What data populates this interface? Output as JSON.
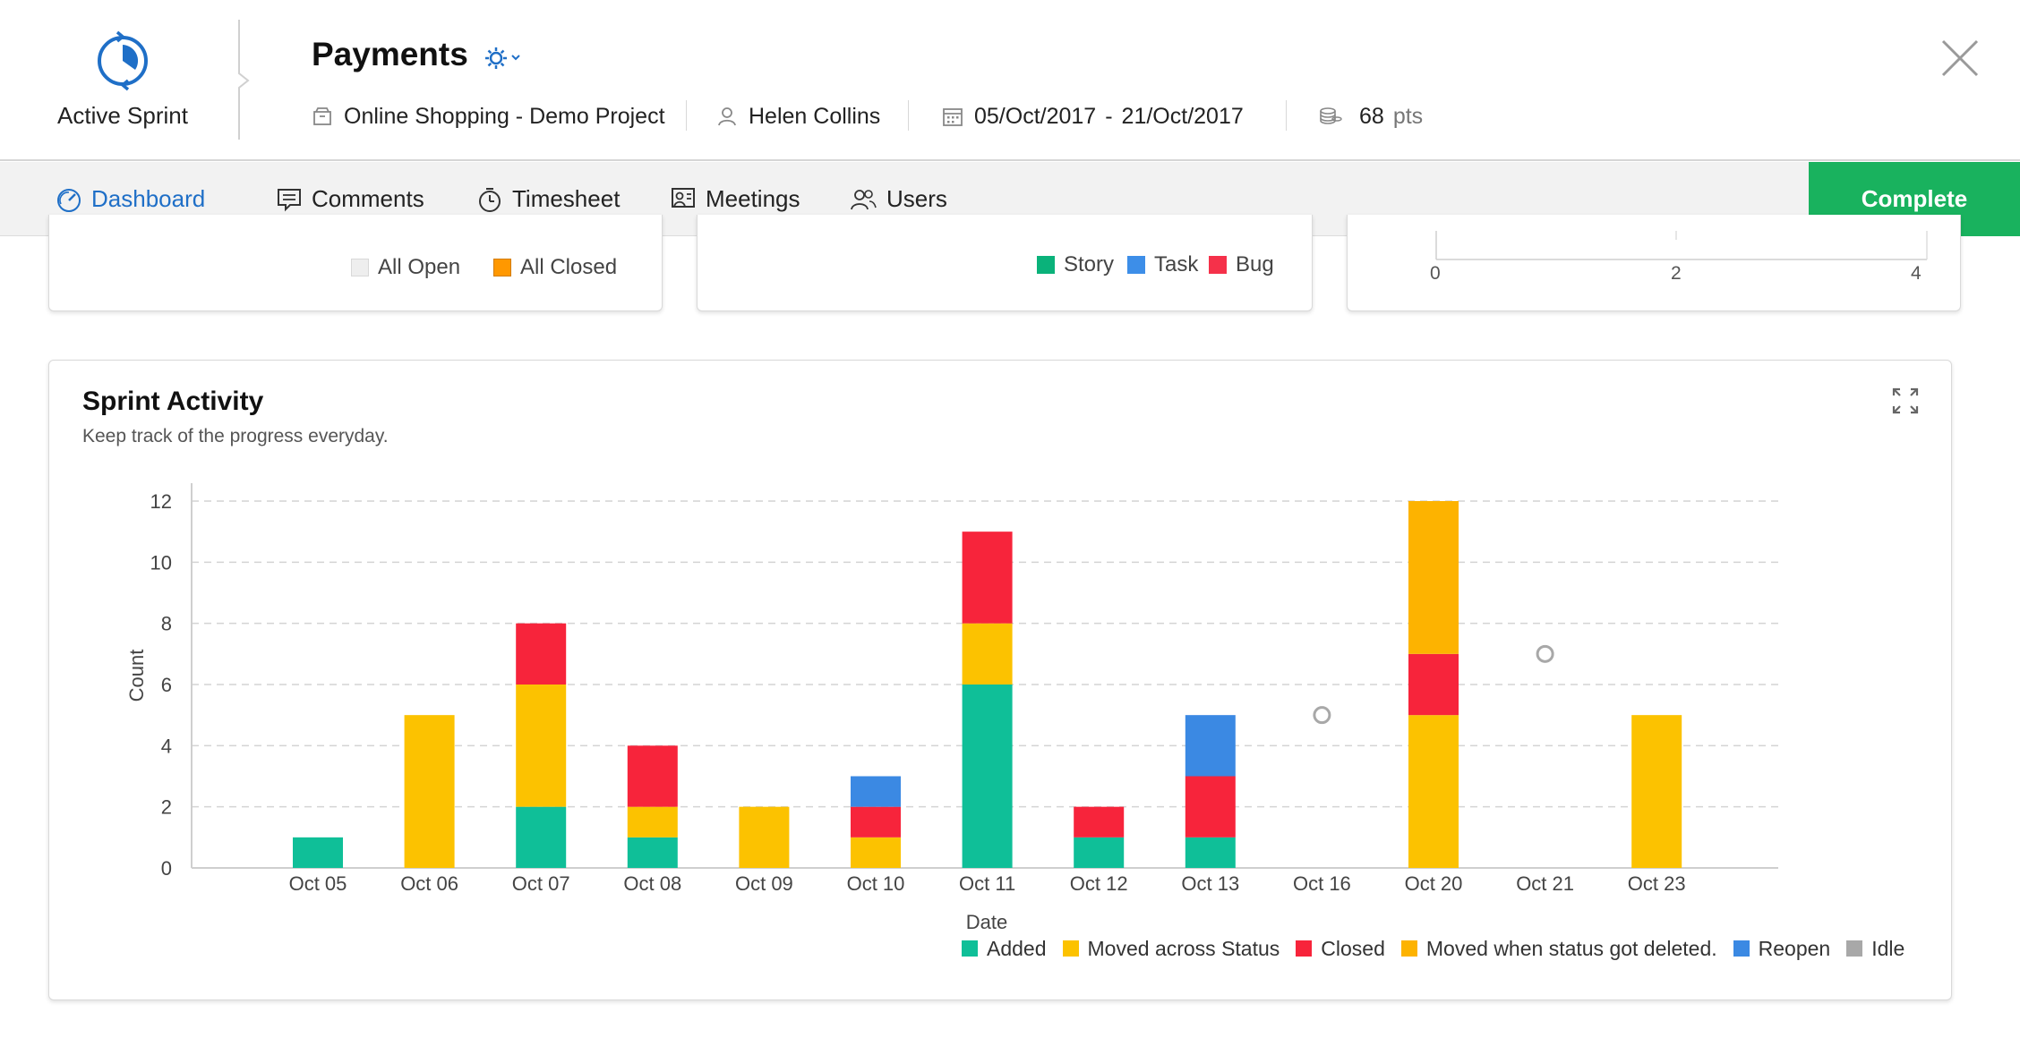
{
  "header": {
    "sprint_label": "Active Sprint",
    "title": "Payments",
    "project": "Online Shopping - Demo Project",
    "owner": "Helen Collins",
    "date_start": "05/Oct/2017",
    "date_sep": "-",
    "date_end": "21/Oct/2017",
    "points": "68",
    "points_unit": "pts",
    "accent_color": "#1f6fc7"
  },
  "tabs": [
    {
      "label": "Dashboard",
      "icon": "dashboard-gauge-icon",
      "active": true
    },
    {
      "label": "Comments",
      "icon": "comment-icon",
      "active": false
    },
    {
      "label": "Timesheet",
      "icon": "stopwatch-icon",
      "active": false
    },
    {
      "label": "Meetings",
      "icon": "meeting-icon",
      "active": false
    },
    {
      "label": "Users",
      "icon": "users-icon",
      "active": false
    }
  ],
  "complete_button": {
    "label": "Complete",
    "color": "#19b25e"
  },
  "upper_cards": {
    "card_a_legend": [
      {
        "label": "All Open",
        "color": "#eeeeee"
      },
      {
        "label": "All Closed",
        "color": "#ff9800"
      }
    ],
    "card_b_legend": [
      {
        "label": "Story",
        "color": "#0ab27a"
      },
      {
        "label": "Task",
        "color": "#3d8ee8"
      },
      {
        "label": "Bug",
        "color": "#f5314a"
      }
    ],
    "card_c_ticks": [
      "0",
      "2",
      "4"
    ]
  },
  "activity": {
    "title": "Sprint Activity",
    "subtitle": "Keep track of the progress everyday.",
    "expand_icon": "expand-icon"
  },
  "chart_data": {
    "type": "bar",
    "stacked": true,
    "xlabel": "Date",
    "ylabel": "Count",
    "ylim": [
      0,
      12
    ],
    "yticks": [
      0,
      2,
      4,
      6,
      8,
      10,
      12
    ],
    "grid": true,
    "legend_position": "bottom-right",
    "categories": [
      "Oct 05",
      "Oct 06",
      "Oct 07",
      "Oct 08",
      "Oct 09",
      "Oct 10",
      "Oct 11",
      "Oct 12",
      "Oct 13",
      "Oct 16",
      "Oct 20",
      "Oct 21",
      "Oct 23"
    ],
    "series": [
      {
        "name": "Added",
        "color": "#0fbf98",
        "values": [
          1,
          0,
          2,
          1,
          0,
          0,
          6,
          1,
          1,
          0,
          0,
          0,
          0
        ]
      },
      {
        "name": "Moved across Status",
        "color": "#fcc200",
        "values": [
          0,
          5,
          4,
          1,
          2,
          1,
          2,
          0,
          0,
          0,
          5,
          0,
          5
        ]
      },
      {
        "name": "Closed",
        "color": "#f7243b",
        "values": [
          0,
          0,
          2,
          2,
          0,
          1,
          3,
          1,
          2,
          0,
          2,
          0,
          0
        ]
      },
      {
        "name": "Moved when status got deleted.",
        "color": "#fdb300",
        "values": [
          0,
          0,
          0,
          0,
          0,
          0,
          0,
          0,
          0,
          0,
          5,
          0,
          0
        ]
      },
      {
        "name": "Reopen",
        "color": "#3b89e3",
        "values": [
          0,
          0,
          0,
          0,
          0,
          1,
          0,
          0,
          2,
          0,
          0,
          0,
          0
        ]
      },
      {
        "name": "Idle",
        "color": "#a8a8a8",
        "values": [
          null,
          null,
          null,
          null,
          null,
          null,
          null,
          null,
          null,
          5,
          null,
          7,
          null
        ]
      }
    ]
  }
}
